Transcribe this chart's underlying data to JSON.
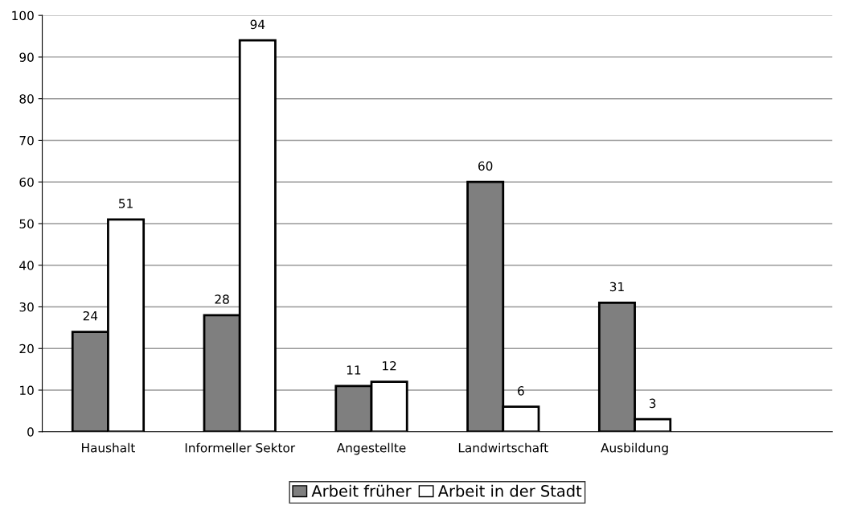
{
  "chart_data": {
    "type": "bar",
    "categories": [
      "Haushalt",
      "Informeller Sektor",
      "Angestellte",
      "Landwirtschaft",
      "Ausbildung",
      null
    ],
    "series": [
      {
        "name": "Arbeit früher",
        "color": "#7f7f7f",
        "values": [
          24,
          28,
          11,
          60,
          31,
          null
        ]
      },
      {
        "name": "Arbeit in der Stadt",
        "color": "#ffffff",
        "values": [
          51,
          94,
          12,
          6,
          3,
          null
        ]
      }
    ],
    "ylim": [
      0,
      100
    ],
    "yticks": [
      0,
      10,
      20,
      30,
      40,
      50,
      60,
      70,
      80,
      90,
      100
    ],
    "grid": "y",
    "legend": "bottom",
    "data_labels": true
  }
}
